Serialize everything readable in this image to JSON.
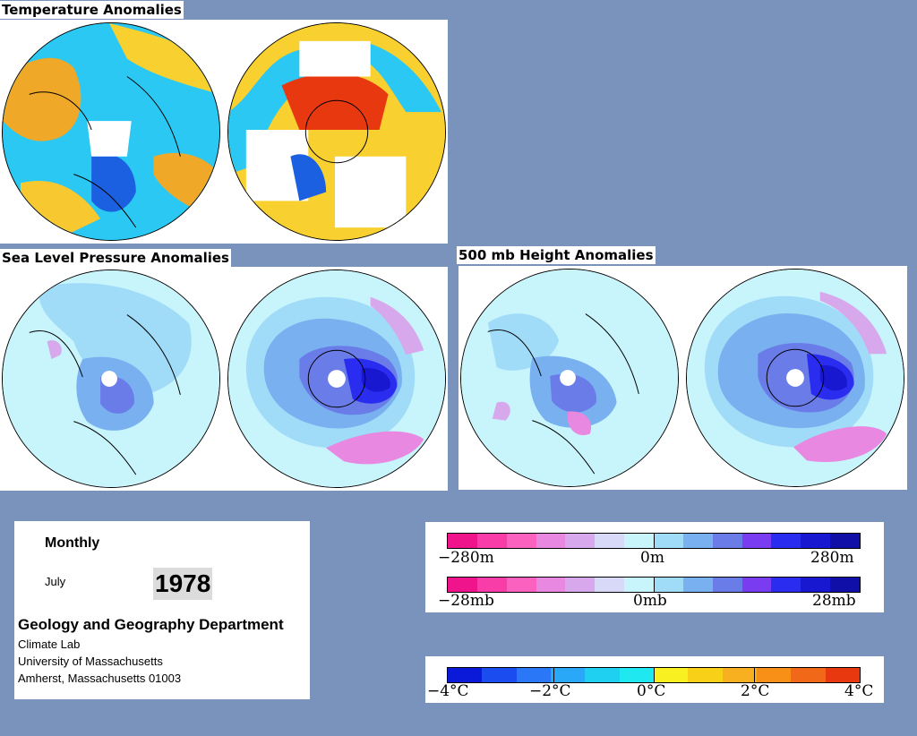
{
  "sections": {
    "temperature_title": "Temperature Anomalies",
    "slp_title": "Sea Level Pressure Anomalies",
    "height_title": "500 mb Height Anomalies"
  },
  "info": {
    "period": "Monthly",
    "month": "July",
    "year": "1978",
    "department": "Geology and Geography Department",
    "line1": "Climate Lab",
    "line2": "University of Massachusetts",
    "line3": "Amherst, Massachusetts 01003"
  },
  "legends": {
    "height_scale": {
      "left": "−280m",
      "center": "0m",
      "right": "280m"
    },
    "pressure_scale": {
      "left": "−28mb",
      "center": "0mb",
      "right": "28mb"
    },
    "temperature_scale": {
      "l1": "−4°C",
      "l2": "−2°C",
      "c": "0°C",
      "r2": "2°C",
      "r1": "4°C"
    }
  },
  "colors": {
    "anomaly_diverging": [
      "#f0148c",
      "#f83ca8",
      "#fb62c0",
      "#e888e0",
      "#d8a8ec",
      "#d8d8f8",
      "#c8f4fc",
      "#a0dcf8",
      "#78b0f0",
      "#6a7ce8",
      "#7a3cf0",
      "#2a2cf0",
      "#1818d0",
      "#1010a8"
    ],
    "temperature": [
      "#0a1ad8",
      "#1a4cf0",
      "#2a78f8",
      "#2aa8f8",
      "#20d0f0",
      "#20e8f0",
      "#f8f020",
      "#f8d018",
      "#f8b020",
      "#f89018",
      "#f06818",
      "#e83810"
    ]
  }
}
